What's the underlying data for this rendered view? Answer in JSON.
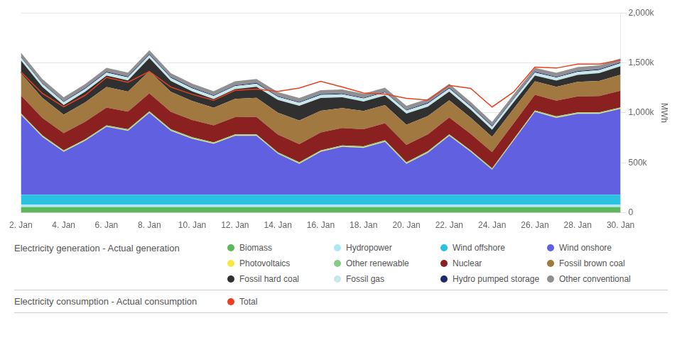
{
  "chart_data": {
    "type": "area",
    "stacked": true,
    "categories": [
      "2. Jan",
      null,
      "4. Jan",
      null,
      "6. Jan",
      null,
      "8. Jan",
      null,
      "10. Jan",
      null,
      "12. Jan",
      null,
      "14. Jan",
      null,
      "16. Jan",
      null,
      "18. Jan",
      null,
      "20. Jan",
      null,
      "22. Jan",
      null,
      "24. Jan",
      null,
      "26. Jan",
      null,
      "28. Jan",
      null,
      "30. Jan"
    ],
    "series": [
      {
        "name": "Biomass",
        "color": "#5cb85c",
        "type": "area",
        "values": [
          55000,
          55000,
          55000,
          55000,
          55000,
          55000,
          55000,
          55000,
          55000,
          55000,
          55000,
          55000,
          55000,
          55000,
          55000,
          55000,
          55000,
          55000,
          55000,
          55000,
          55000,
          55000,
          55000,
          55000,
          55000,
          55000,
          55000,
          55000,
          55000
        ]
      },
      {
        "name": "Hydropower",
        "color": "#aee6f5",
        "type": "area",
        "values": [
          25000,
          25000,
          25000,
          25000,
          25000,
          25000,
          25000,
          25000,
          25000,
          25000,
          25000,
          25000,
          25000,
          25000,
          25000,
          25000,
          25000,
          25000,
          25000,
          25000,
          25000,
          25000,
          25000,
          25000,
          25000,
          25000,
          25000,
          25000,
          25000
        ]
      },
      {
        "name": "Wind offshore",
        "color": "#29c3e0",
        "type": "area",
        "values": [
          100000,
          100000,
          100000,
          100000,
          100000,
          100000,
          100000,
          100000,
          100000,
          100000,
          100000,
          100000,
          100000,
          100000,
          100000,
          100000,
          100000,
          100000,
          100000,
          100000,
          100000,
          100000,
          100000,
          100000,
          100000,
          100000,
          100000,
          100000,
          100000
        ]
      },
      {
        "name": "Wind onshore",
        "color": "#6060e0",
        "type": "area",
        "values": [
          800000,
          580000,
          430000,
          540000,
          680000,
          640000,
          820000,
          640000,
          560000,
          510000,
          590000,
          590000,
          410000,
          310000,
          430000,
          480000,
          470000,
          530000,
          310000,
          420000,
          590000,
          430000,
          250000,
          540000,
          830000,
          770000,
          810000,
          810000,
          860000
        ]
      },
      {
        "name": "Photovoltaics",
        "color": "#f5e942",
        "type": "area",
        "values": [
          5000,
          5000,
          5000,
          5000,
          5000,
          5000,
          5000,
          5000,
          5000,
          5000,
          5000,
          5000,
          5000,
          5000,
          5000,
          5000,
          5000,
          5000,
          5000,
          5000,
          5000,
          5000,
          5000,
          5000,
          5000,
          5000,
          5000,
          5000,
          5000
        ]
      },
      {
        "name": "Other renewable",
        "color": "#88c988",
        "type": "area",
        "values": [
          10000,
          10000,
          10000,
          10000,
          10000,
          10000,
          10000,
          10000,
          10000,
          10000,
          10000,
          10000,
          10000,
          10000,
          10000,
          10000,
          10000,
          10000,
          10000,
          10000,
          10000,
          10000,
          10000,
          10000,
          10000,
          10000,
          10000,
          10000,
          10000
        ]
      },
      {
        "name": "Nuclear",
        "color": "#8b2020",
        "type": "area",
        "values": [
          180000,
          175000,
          172000,
          175000,
          178000,
          176000,
          180000,
          175000,
          173000,
          170000,
          172000,
          174000,
          178000,
          182000,
          178000,
          174000,
          171000,
          171000,
          175000,
          170000,
          168000,
          165000,
          162000,
          158000,
          155000,
          157000,
          160000,
          163000,
          166000
        ]
      },
      {
        "name": "Fossil brown coal",
        "color": "#a07840",
        "type": "area",
        "values": [
          220000,
          200000,
          185000,
          195000,
          205000,
          202000,
          222000,
          200000,
          190000,
          175000,
          182000,
          192000,
          218000,
          235000,
          218000,
          198000,
          182000,
          182000,
          200000,
          182000,
          172000,
          162000,
          152000,
          145000,
          135000,
          138000,
          145000,
          152000,
          160000
        ]
      },
      {
        "name": "Fossil hard coal",
        "color": "#303030",
        "type": "area",
        "values": [
          130000,
          110000,
          95000,
          105000,
          115000,
          112000,
          132000,
          110000,
          97000,
          88000,
          98000,
          110000,
          128000,
          148000,
          128000,
          108000,
          95000,
          95000,
          112000,
          95000,
          88000,
          80000,
          72000,
          66000,
          58000,
          62000,
          70000,
          78000,
          86000
        ]
      },
      {
        "name": "Fossil gas",
        "color": "#c8e8e8",
        "type": "area",
        "values": [
          30000,
          30000,
          30000,
          30000,
          30000,
          30000,
          30000,
          30000,
          30000,
          30000,
          30000,
          30000,
          30000,
          30000,
          30000,
          30000,
          30000,
          30000,
          30000,
          30000,
          30000,
          30000,
          30000,
          30000,
          30000,
          30000,
          30000,
          30000,
          30000
        ]
      },
      {
        "name": "Hydro pumped storage",
        "color": "#202870",
        "type": "area",
        "values": [
          8000,
          8000,
          8000,
          8000,
          8000,
          8000,
          8000,
          8000,
          8000,
          8000,
          8000,
          8000,
          8000,
          8000,
          8000,
          8000,
          8000,
          8000,
          8000,
          8000,
          8000,
          8000,
          8000,
          8000,
          8000,
          8000,
          8000,
          8000,
          8000
        ]
      },
      {
        "name": "Other conventional",
        "color": "#909090",
        "type": "area",
        "values": [
          40000,
          40000,
          40000,
          40000,
          40000,
          40000,
          40000,
          40000,
          40000,
          40000,
          40000,
          40000,
          40000,
          40000,
          40000,
          40000,
          40000,
          40000,
          40000,
          40000,
          40000,
          40000,
          40000,
          40000,
          40000,
          40000,
          40000,
          40000,
          40000
        ]
      },
      {
        "name": "Total",
        "color": "#e84020",
        "type": "line",
        "values": [
          1410000,
          1195000,
          1060000,
          1175000,
          1355000,
          1305000,
          1415000,
          1258000,
          1185000,
          1125000,
          1225000,
          1238000,
          1215000,
          1248000,
          1315000,
          1258000,
          1198000,
          1188000,
          1145000,
          1128000,
          1275000,
          1245000,
          1058000,
          1208000,
          1458000,
          1448000,
          1488000,
          1488000,
          1528000
        ]
      }
    ],
    "ylabel": "MWh",
    "ylim": [
      0,
      2000000
    ],
    "yticks": [
      0,
      {
        "value": 500000,
        "label": "500k"
      },
      {
        "value": 1000000,
        "label": "1,000k"
      },
      {
        "value": 1500000,
        "label": "1,500k"
      },
      {
        "value": 2000000,
        "label": "2,000k"
      }
    ],
    "grid": "y",
    "legend": "bottom",
    "annotations": [
      "Electricity generation - Actual generation",
      "Electricity consumption - Actual consumption"
    ]
  }
}
